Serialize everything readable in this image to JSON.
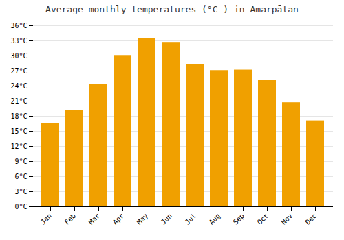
{
  "chart_data": {
    "type": "bar",
    "title": "Average monthly temperatures (°C ) in Amarpātan",
    "categories": [
      "Jan",
      "Feb",
      "Mar",
      "Apr",
      "May",
      "Jun",
      "Jul",
      "Aug",
      "Sep",
      "Oct",
      "Nov",
      "Dec"
    ],
    "values": [
      16.5,
      19.2,
      24.3,
      30.1,
      33.5,
      32.7,
      28.3,
      27.1,
      27.2,
      25.2,
      20.7,
      17.1
    ],
    "color": "#F0A000",
    "ylim": [
      0,
      36
    ],
    "yticks": [
      {
        "value": 0,
        "label": "0°C"
      },
      {
        "value": 3,
        "label": "3°C"
      },
      {
        "value": 6,
        "label": "6°C"
      },
      {
        "value": 9,
        "label": "9°C"
      },
      {
        "value": 12,
        "label": "12°C"
      },
      {
        "value": 15,
        "label": "15°C"
      },
      {
        "value": 18,
        "label": "18°C"
      },
      {
        "value": 21,
        "label": "21°C"
      },
      {
        "value": 24,
        "label": "24°C"
      },
      {
        "value": 27,
        "label": "27°C"
      },
      {
        "value": 30,
        "label": "30°C"
      },
      {
        "value": 33,
        "label": "33°C"
      },
      {
        "value": 36,
        "label": "36°C"
      }
    ],
    "grid": true
  }
}
